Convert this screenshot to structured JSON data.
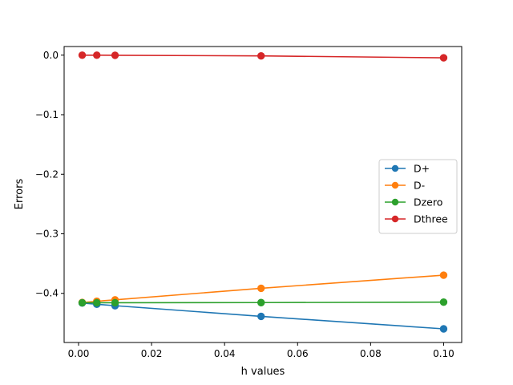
{
  "chart_data": {
    "type": "line",
    "title": "",
    "xlabel": "h values",
    "ylabel": "Errors",
    "xlim": [
      -0.00395,
      0.10495
    ],
    "ylim": [
      -0.4825,
      0.0145
    ],
    "xticks": [
      0.0,
      0.02,
      0.04,
      0.06,
      0.08,
      0.1
    ],
    "xtick_labels": [
      "0.00",
      "0.02",
      "0.04",
      "0.06",
      "0.08",
      "0.10"
    ],
    "yticks": [
      0.0,
      -0.1,
      -0.2,
      -0.3,
      -0.4
    ],
    "ytick_labels": [
      "0.0",
      "−0.1",
      "−0.2",
      "−0.3",
      "−0.4"
    ],
    "grid": false,
    "legend_position": "center-right",
    "x": [
      0.001,
      0.005,
      0.01,
      0.05,
      0.1
    ],
    "series": [
      {
        "name": "D+",
        "color": "#1f77b4",
        "marker": "circle",
        "values": [
          -0.4163,
          -0.4183,
          -0.4207,
          -0.4386,
          -0.4596
        ]
      },
      {
        "name": "D-",
        "color": "#ff7f0e",
        "marker": "circle",
        "values": [
          -0.4153,
          -0.4133,
          -0.4108,
          -0.3915,
          -0.3694
        ]
      },
      {
        "name": "Dzero",
        "color": "#2ca02c",
        "marker": "circle",
        "values": [
          -0.4158,
          -0.4158,
          -0.4158,
          -0.4155,
          -0.4147
        ]
      },
      {
        "name": "Dthree",
        "color": "#d62728",
        "marker": "circle",
        "values": [
          0.0,
          0.0,
          -0.0002,
          -0.0012,
          -0.0045
        ]
      }
    ]
  }
}
